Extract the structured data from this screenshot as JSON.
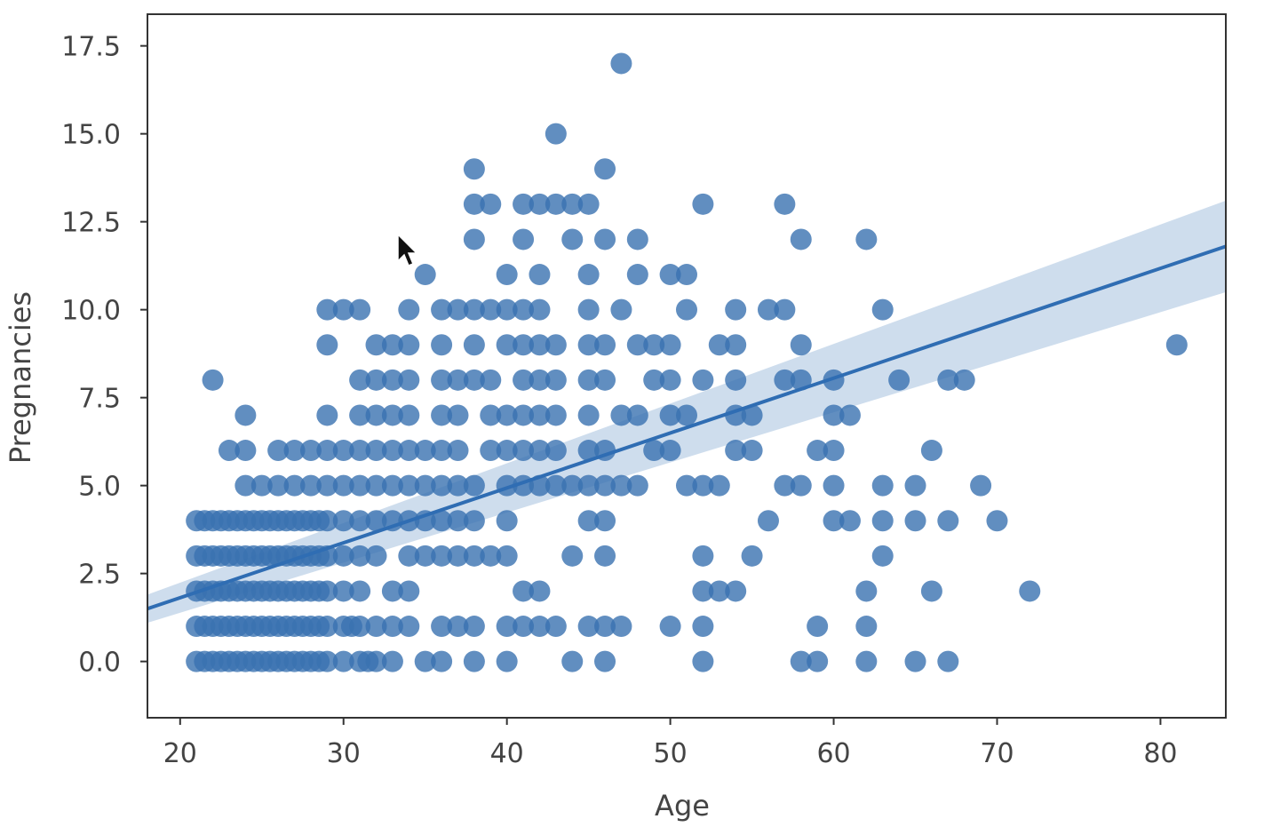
{
  "chart_data": {
    "type": "scatter",
    "title": "",
    "xlabel": "Age",
    "ylabel": "Pregnancies",
    "xlim": [
      18.0,
      84.0
    ],
    "ylim": [
      -1.6,
      18.4
    ],
    "x_ticks": [
      20,
      30,
      40,
      50,
      60,
      70,
      80
    ],
    "y_ticks": [
      0.0,
      2.5,
      5.0,
      7.5,
      10.0,
      12.5,
      15.0,
      17.5
    ],
    "grid": false,
    "legend": "none",
    "colors": {
      "points": "#3a72b0",
      "fit_line": "#2f6db3",
      "ci_band": "#c6d7ea",
      "frame": "#333333"
    },
    "regression": {
      "x": [
        18.0,
        84.0
      ],
      "y": [
        1.5,
        11.8
      ],
      "ci_half_width_at_ends": [
        0.4,
        1.3
      ]
    },
    "points": [
      [
        21,
        0
      ],
      [
        21.5,
        0
      ],
      [
        22,
        0
      ],
      [
        22.5,
        0
      ],
      [
        23,
        0
      ],
      [
        23.5,
        0
      ],
      [
        24,
        0
      ],
      [
        24.5,
        0
      ],
      [
        25,
        0
      ],
      [
        25.5,
        0
      ],
      [
        26,
        0
      ],
      [
        26.5,
        0
      ],
      [
        27,
        0
      ],
      [
        27.5,
        0
      ],
      [
        28,
        0
      ],
      [
        28.5,
        0
      ],
      [
        29,
        0
      ],
      [
        30,
        0
      ],
      [
        31,
        0
      ],
      [
        31.5,
        0
      ],
      [
        32,
        0
      ],
      [
        33,
        0
      ],
      [
        35,
        0
      ],
      [
        36,
        0
      ],
      [
        38,
        0
      ],
      [
        40,
        0
      ],
      [
        44,
        0
      ],
      [
        46,
        0
      ],
      [
        52,
        0
      ],
      [
        58,
        0
      ],
      [
        59,
        0
      ],
      [
        62,
        0
      ],
      [
        65,
        0
      ],
      [
        67,
        0
      ],
      [
        21,
        1
      ],
      [
        21.5,
        1
      ],
      [
        22,
        1
      ],
      [
        22.5,
        1
      ],
      [
        23,
        1
      ],
      [
        23.5,
        1
      ],
      [
        24,
        1
      ],
      [
        24.5,
        1
      ],
      [
        25,
        1
      ],
      [
        25.5,
        1
      ],
      [
        26,
        1
      ],
      [
        26.5,
        1
      ],
      [
        27,
        1
      ],
      [
        27.5,
        1
      ],
      [
        28,
        1
      ],
      [
        28.5,
        1
      ],
      [
        29,
        1
      ],
      [
        30,
        1
      ],
      [
        30.5,
        1
      ],
      [
        31,
        1
      ],
      [
        32,
        1
      ],
      [
        33,
        1
      ],
      [
        34,
        1
      ],
      [
        36,
        1
      ],
      [
        37,
        1
      ],
      [
        38,
        1
      ],
      [
        40,
        1
      ],
      [
        41,
        1
      ],
      [
        42,
        1
      ],
      [
        43,
        1
      ],
      [
        45,
        1
      ],
      [
        46,
        1
      ],
      [
        47,
        1
      ],
      [
        50,
        1
      ],
      [
        52,
        1
      ],
      [
        59,
        1
      ],
      [
        62,
        1
      ],
      [
        21,
        2
      ],
      [
        21.5,
        2
      ],
      [
        22,
        2
      ],
      [
        22.5,
        2
      ],
      [
        23,
        2
      ],
      [
        23.5,
        2
      ],
      [
        24,
        2
      ],
      [
        24.5,
        2
      ],
      [
        25,
        2
      ],
      [
        25.5,
        2
      ],
      [
        26,
        2
      ],
      [
        26.5,
        2
      ],
      [
        27,
        2
      ],
      [
        27.5,
        2
      ],
      [
        28,
        2
      ],
      [
        28.5,
        2
      ],
      [
        29,
        2
      ],
      [
        30,
        2
      ],
      [
        31,
        2
      ],
      [
        33,
        2
      ],
      [
        34,
        2
      ],
      [
        41,
        2
      ],
      [
        42,
        2
      ],
      [
        52,
        2
      ],
      [
        53,
        2
      ],
      [
        54,
        2
      ],
      [
        62,
        2
      ],
      [
        66,
        2
      ],
      [
        72,
        2
      ],
      [
        21,
        3
      ],
      [
        21.5,
        3
      ],
      [
        22,
        3
      ],
      [
        22.5,
        3
      ],
      [
        23,
        3
      ],
      [
        23.5,
        3
      ],
      [
        24,
        3
      ],
      [
        24.5,
        3
      ],
      [
        25,
        3
      ],
      [
        25.5,
        3
      ],
      [
        26,
        3
      ],
      [
        26.5,
        3
      ],
      [
        27,
        3
      ],
      [
        27.5,
        3
      ],
      [
        28,
        3
      ],
      [
        28.5,
        3
      ],
      [
        29,
        3
      ],
      [
        30,
        3
      ],
      [
        31,
        3
      ],
      [
        32,
        3
      ],
      [
        34,
        3
      ],
      [
        35,
        3
      ],
      [
        36,
        3
      ],
      [
        37,
        3
      ],
      [
        38,
        3
      ],
      [
        39,
        3
      ],
      [
        40,
        3
      ],
      [
        44,
        3
      ],
      [
        46,
        3
      ],
      [
        52,
        3
      ],
      [
        55,
        3
      ],
      [
        63,
        3
      ],
      [
        21,
        4
      ],
      [
        21.5,
        4
      ],
      [
        22,
        4
      ],
      [
        22.5,
        4
      ],
      [
        23,
        4
      ],
      [
        23.5,
        4
      ],
      [
        24,
        4
      ],
      [
        24.5,
        4
      ],
      [
        25,
        4
      ],
      [
        25.5,
        4
      ],
      [
        26,
        4
      ],
      [
        26.5,
        4
      ],
      [
        27,
        4
      ],
      [
        27.5,
        4
      ],
      [
        28,
        4
      ],
      [
        28.5,
        4
      ],
      [
        29,
        4
      ],
      [
        30,
        4
      ],
      [
        31,
        4
      ],
      [
        32,
        4
      ],
      [
        33,
        4
      ],
      [
        34,
        4
      ],
      [
        35,
        4
      ],
      [
        36,
        4
      ],
      [
        37,
        4
      ],
      [
        38,
        4
      ],
      [
        40,
        4
      ],
      [
        45,
        4
      ],
      [
        46,
        4
      ],
      [
        56,
        4
      ],
      [
        60,
        4
      ],
      [
        61,
        4
      ],
      [
        63,
        4
      ],
      [
        65,
        4
      ],
      [
        67,
        4
      ],
      [
        70,
        4
      ],
      [
        24,
        5
      ],
      [
        25,
        5
      ],
      [
        26,
        5
      ],
      [
        27,
        5
      ],
      [
        28,
        5
      ],
      [
        29,
        5
      ],
      [
        30,
        5
      ],
      [
        31,
        5
      ],
      [
        32,
        5
      ],
      [
        33,
        5
      ],
      [
        34,
        5
      ],
      [
        35,
        5
      ],
      [
        36,
        5
      ],
      [
        37,
        5
      ],
      [
        38,
        5
      ],
      [
        40,
        5
      ],
      [
        41,
        5
      ],
      [
        42,
        5
      ],
      [
        43,
        5
      ],
      [
        44,
        5
      ],
      [
        45,
        5
      ],
      [
        46,
        5
      ],
      [
        47,
        5
      ],
      [
        48,
        5
      ],
      [
        51,
        5
      ],
      [
        52,
        5
      ],
      [
        53,
        5
      ],
      [
        57,
        5
      ],
      [
        58,
        5
      ],
      [
        60,
        5
      ],
      [
        63,
        5
      ],
      [
        65,
        5
      ],
      [
        69,
        5
      ],
      [
        23,
        6
      ],
      [
        24,
        6
      ],
      [
        26,
        6
      ],
      [
        27,
        6
      ],
      [
        28,
        6
      ],
      [
        29,
        6
      ],
      [
        30,
        6
      ],
      [
        31,
        6
      ],
      [
        32,
        6
      ],
      [
        33,
        6
      ],
      [
        34,
        6
      ],
      [
        35,
        6
      ],
      [
        36,
        6
      ],
      [
        37,
        6
      ],
      [
        39,
        6
      ],
      [
        40,
        6
      ],
      [
        41,
        6
      ],
      [
        42,
        6
      ],
      [
        43,
        6
      ],
      [
        45,
        6
      ],
      [
        46,
        6
      ],
      [
        49,
        6
      ],
      [
        50,
        6
      ],
      [
        54,
        6
      ],
      [
        55,
        6
      ],
      [
        59,
        6
      ],
      [
        60,
        6
      ],
      [
        66,
        6
      ],
      [
        24,
        7
      ],
      [
        29,
        7
      ],
      [
        31,
        7
      ],
      [
        32,
        7
      ],
      [
        33,
        7
      ],
      [
        34,
        7
      ],
      [
        36,
        7
      ],
      [
        37,
        7
      ],
      [
        39,
        7
      ],
      [
        40,
        7
      ],
      [
        41,
        7
      ],
      [
        42,
        7
      ],
      [
        43,
        7
      ],
      [
        45,
        7
      ],
      [
        47,
        7
      ],
      [
        48,
        7
      ],
      [
        50,
        7
      ],
      [
        51,
        7
      ],
      [
        54,
        7
      ],
      [
        55,
        7
      ],
      [
        60,
        7
      ],
      [
        61,
        7
      ],
      [
        22,
        8
      ],
      [
        31,
        8
      ],
      [
        32,
        8
      ],
      [
        33,
        8
      ],
      [
        34,
        8
      ],
      [
        36,
        8
      ],
      [
        37,
        8
      ],
      [
        38,
        8
      ],
      [
        39,
        8
      ],
      [
        41,
        8
      ],
      [
        42,
        8
      ],
      [
        43,
        8
      ],
      [
        45,
        8
      ],
      [
        46,
        8
      ],
      [
        49,
        8
      ],
      [
        50,
        8
      ],
      [
        52,
        8
      ],
      [
        54,
        8
      ],
      [
        57,
        8
      ],
      [
        58,
        8
      ],
      [
        60,
        8
      ],
      [
        64,
        8
      ],
      [
        67,
        8
      ],
      [
        68,
        8
      ],
      [
        29,
        9
      ],
      [
        32,
        9
      ],
      [
        33,
        9
      ],
      [
        34,
        9
      ],
      [
        36,
        9
      ],
      [
        38,
        9
      ],
      [
        40,
        9
      ],
      [
        41,
        9
      ],
      [
        42,
        9
      ],
      [
        43,
        9
      ],
      [
        45,
        9
      ],
      [
        46,
        9
      ],
      [
        48,
        9
      ],
      [
        49,
        9
      ],
      [
        50,
        9
      ],
      [
        53,
        9
      ],
      [
        54,
        9
      ],
      [
        58,
        9
      ],
      [
        81,
        9
      ],
      [
        29,
        10
      ],
      [
        30,
        10
      ],
      [
        31,
        10
      ],
      [
        34,
        10
      ],
      [
        36,
        10
      ],
      [
        37,
        10
      ],
      [
        38,
        10
      ],
      [
        39,
        10
      ],
      [
        40,
        10
      ],
      [
        41,
        10
      ],
      [
        42,
        10
      ],
      [
        45,
        10
      ],
      [
        47,
        10
      ],
      [
        51,
        10
      ],
      [
        54,
        10
      ],
      [
        56,
        10
      ],
      [
        57,
        10
      ],
      [
        63,
        10
      ],
      [
        35,
        11
      ],
      [
        40,
        11
      ],
      [
        42,
        11
      ],
      [
        45,
        11
      ],
      [
        48,
        11
      ],
      [
        50,
        11
      ],
      [
        51,
        11
      ],
      [
        38,
        12
      ],
      [
        41,
        12
      ],
      [
        44,
        12
      ],
      [
        46,
        12
      ],
      [
        48,
        12
      ],
      [
        58,
        12
      ],
      [
        62,
        12
      ],
      [
        38,
        13
      ],
      [
        39,
        13
      ],
      [
        41,
        13
      ],
      [
        42,
        13
      ],
      [
        43,
        13
      ],
      [
        44,
        13
      ],
      [
        45,
        13
      ],
      [
        52,
        13
      ],
      [
        57,
        13
      ],
      [
        38,
        14
      ],
      [
        46,
        14
      ],
      [
        43,
        15
      ],
      [
        47,
        17
      ]
    ]
  }
}
